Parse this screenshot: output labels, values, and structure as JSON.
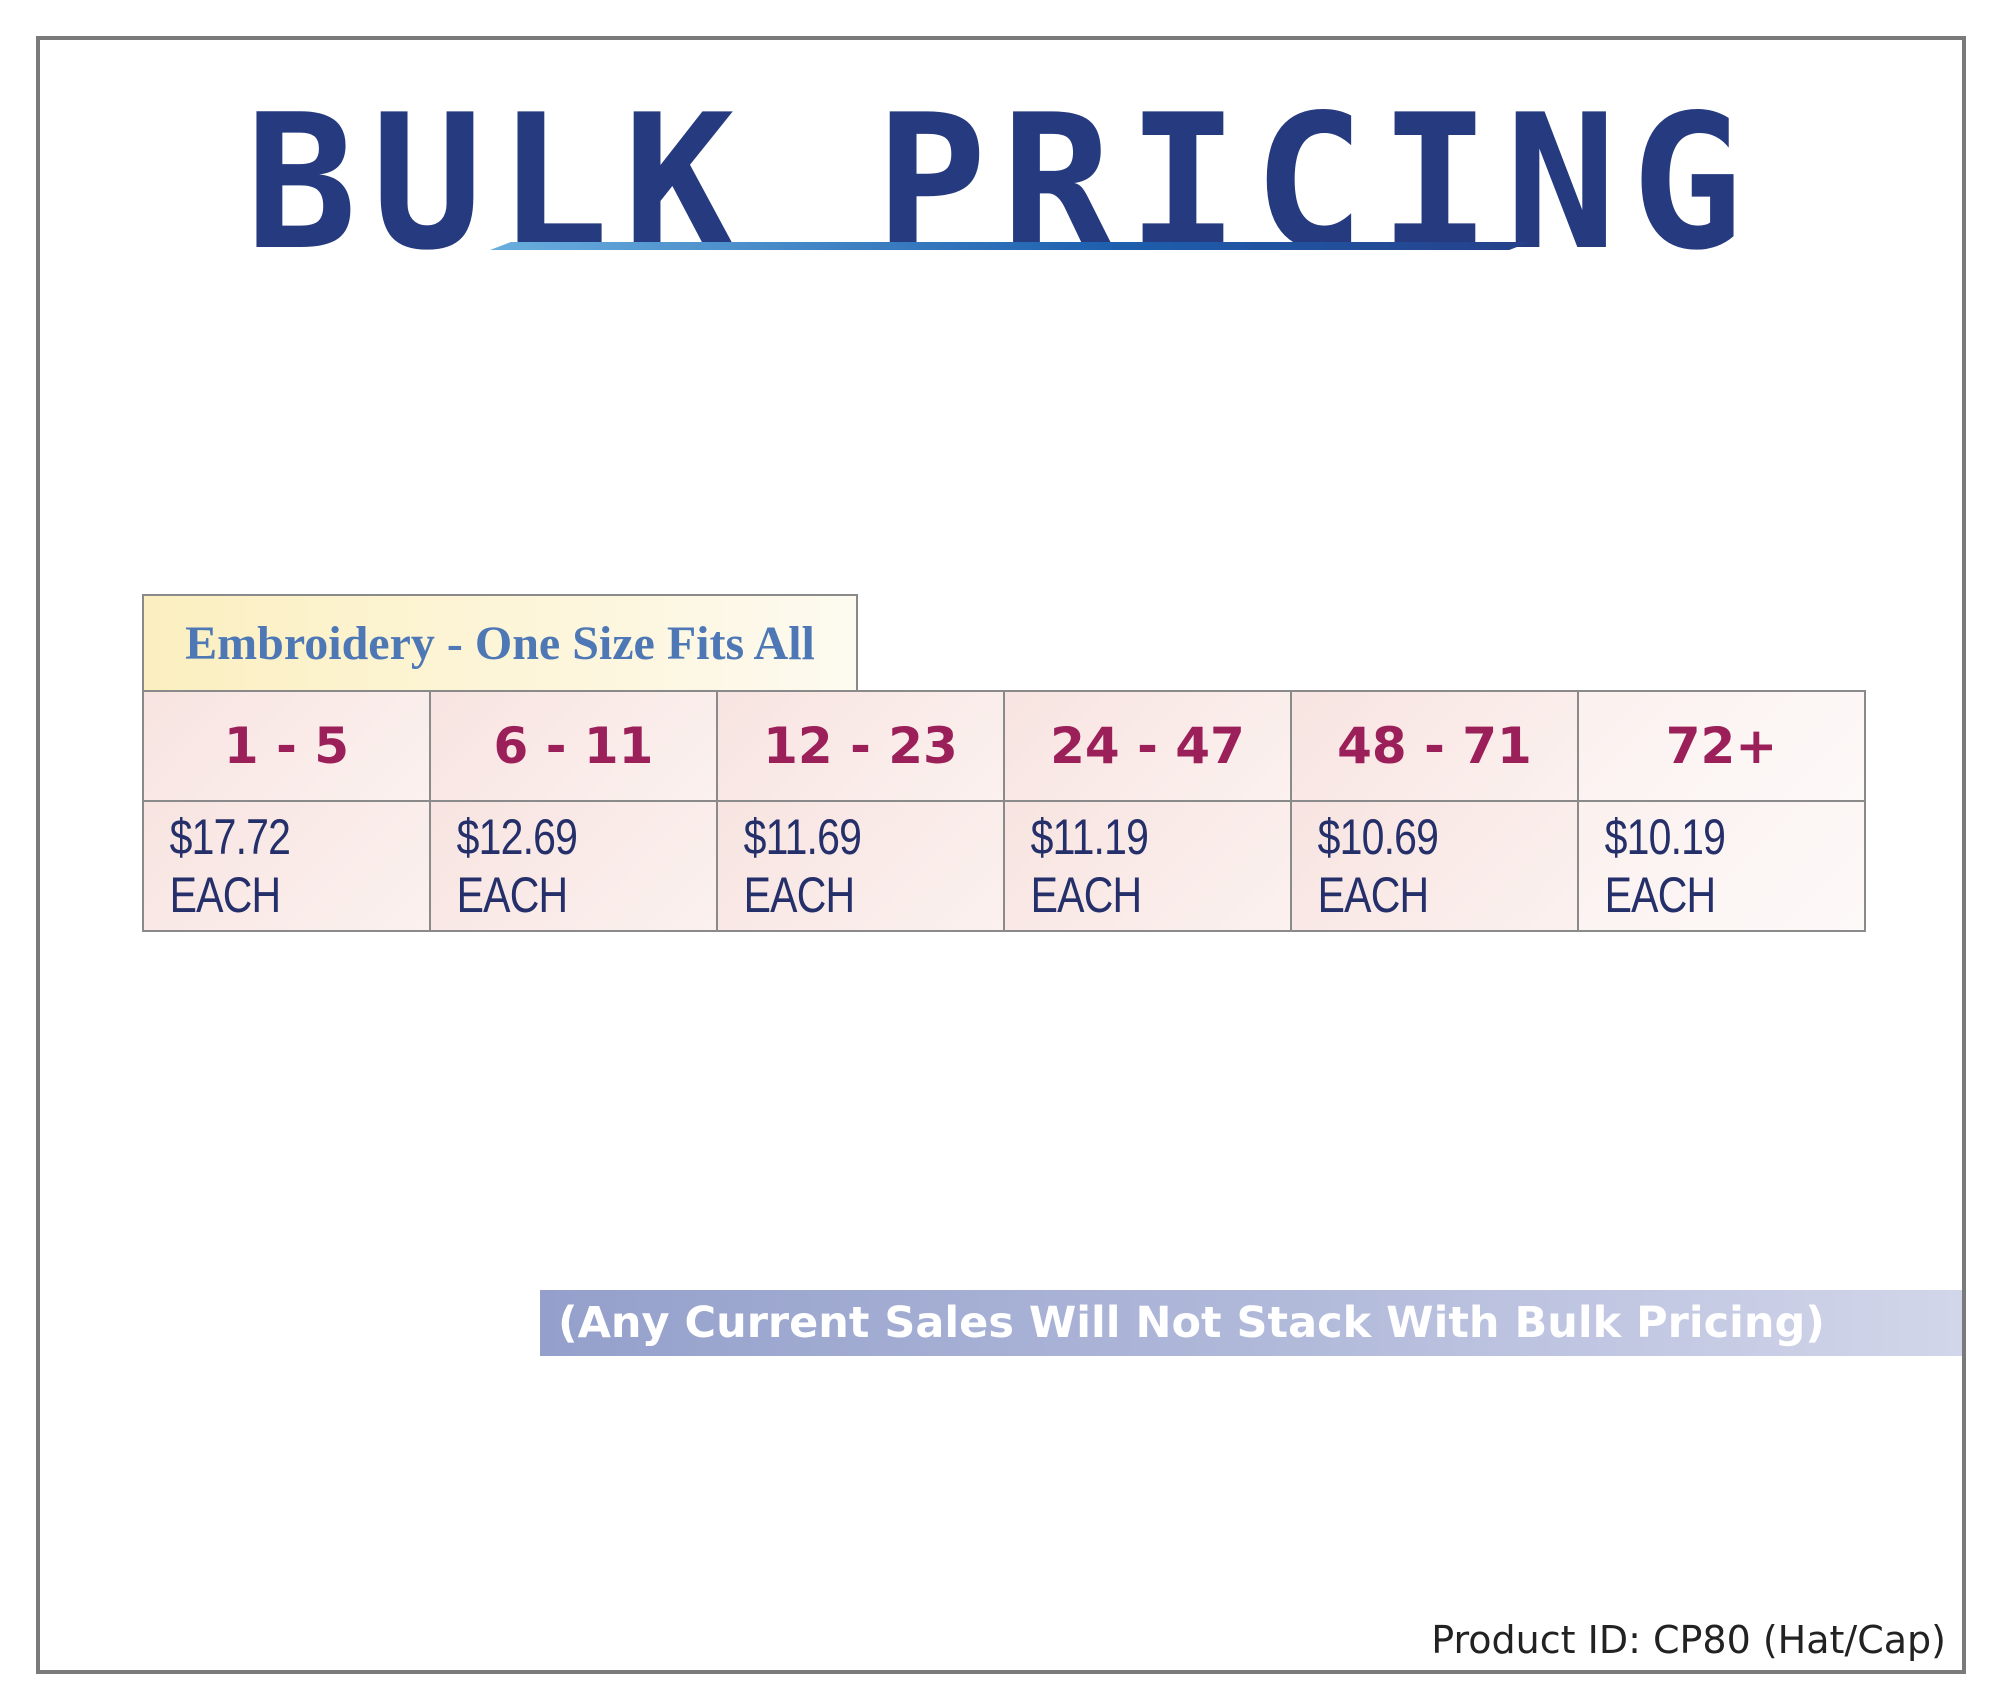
{
  "header": {
    "title": "BULK PRICING"
  },
  "pricing_table": {
    "caption": "Embroidery - One Size Fits All",
    "tiers": [
      {
        "quantity": "1 - 5",
        "price": "$17.72 EACH"
      },
      {
        "quantity": "6 - 11",
        "price": "$12.69 EACH"
      },
      {
        "quantity": "12 - 23",
        "price": "$11.69 EACH"
      },
      {
        "quantity": "24 - 47",
        "price": "$11.19 EACH"
      },
      {
        "quantity": "48 - 71",
        "price": "$10.69 EACH"
      },
      {
        "quantity": "72+",
        "price": "$10.19 EACH"
      }
    ]
  },
  "notice": {
    "text": "(Any Current Sales Will Not Stack With Bulk Pricing)"
  },
  "footer": {
    "product_id": "Product ID: CP80 (Hat/Cap)"
  },
  "colors": {
    "title": "#263a7f",
    "quantity_text": "#9b1f58",
    "price_text": "#25306a",
    "caption_text": "#4d78b5",
    "border": "#7a7a7a"
  }
}
